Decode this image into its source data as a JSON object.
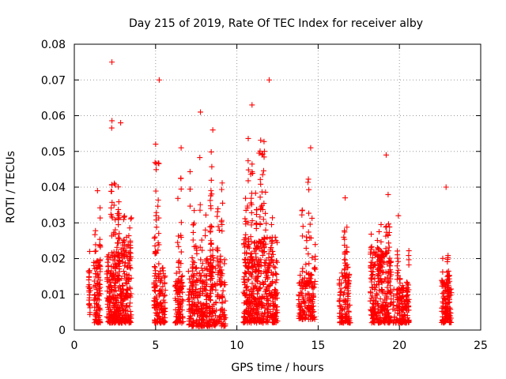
{
  "chart_data": {
    "type": "scatter",
    "title": "Day 215 of 2019, Rate Of TEC Index for receiver alby",
    "xlabel": "GPS time / hours",
    "ylabel": "ROTI / TECUs",
    "xlim": [
      0,
      25
    ],
    "ylim": [
      0,
      0.08
    ],
    "x_ticks": [
      0,
      5,
      10,
      15,
      20,
      25
    ],
    "x_tick_labels": [
      "0",
      "5",
      "10",
      "15",
      "20",
      "25"
    ],
    "y_ticks": [
      0,
      0.01,
      0.02,
      0.03,
      0.04,
      0.05,
      0.06,
      0.07,
      0.08
    ],
    "y_tick_labels": [
      "0",
      "0.01",
      "0.02",
      "0.03",
      "0.04",
      "0.05",
      "0.06",
      "0.07",
      "0.08"
    ],
    "grid": true,
    "marker": "plus",
    "color": "#ff0000",
    "seed": 215,
    "clusters": [
      {
        "x_start": 0.9,
        "x_end": 1.0,
        "base_min": 0.003,
        "base_max": 0.012,
        "count": 10,
        "peak": 0.022
      },
      {
        "x_start": 1.2,
        "x_end": 1.6,
        "base_min": 0.002,
        "base_max": 0.02,
        "count": 90,
        "peak": 0.039
      },
      {
        "x_start": 2.0,
        "x_end": 2.6,
        "base_min": 0.002,
        "base_max": 0.022,
        "count": 150,
        "peak": 0.075
      },
      {
        "x_start": 2.6,
        "x_end": 3.5,
        "base_min": 0.002,
        "base_max": 0.026,
        "count": 200,
        "peak": 0.058
      },
      {
        "x_start": 4.9,
        "x_end": 5.6,
        "base_min": 0.002,
        "base_max": 0.018,
        "count": 120,
        "peak": 0.07
      },
      {
        "x_start": 6.2,
        "x_end": 6.7,
        "base_min": 0.002,
        "base_max": 0.016,
        "count": 80,
        "peak": 0.051
      },
      {
        "x_start": 7.0,
        "x_end": 8.0,
        "base_min": 0.001,
        "base_max": 0.018,
        "count": 150,
        "peak": 0.061
      },
      {
        "x_start": 8.0,
        "x_end": 9.3,
        "base_min": 0.001,
        "base_max": 0.02,
        "count": 170,
        "peak": 0.056
      },
      {
        "x_start": 10.4,
        "x_end": 11.4,
        "base_min": 0.002,
        "base_max": 0.026,
        "count": 220,
        "peak": 0.063
      },
      {
        "x_start": 11.4,
        "x_end": 12.5,
        "base_min": 0.002,
        "base_max": 0.026,
        "count": 200,
        "peak": 0.07
      },
      {
        "x_start": 13.8,
        "x_end": 14.8,
        "base_min": 0.003,
        "base_max": 0.016,
        "count": 130,
        "peak": 0.051
      },
      {
        "x_start": 16.3,
        "x_end": 17.0,
        "base_min": 0.002,
        "base_max": 0.016,
        "count": 100,
        "peak": 0.037
      },
      {
        "x_start": 18.2,
        "x_end": 19.5,
        "base_min": 0.002,
        "base_max": 0.022,
        "count": 240,
        "peak": 0.049
      },
      {
        "x_start": 19.6,
        "x_end": 20.6,
        "base_min": 0.002,
        "base_max": 0.012,
        "count": 120,
        "peak": 0.032
      },
      {
        "x_start": 22.6,
        "x_end": 23.2,
        "base_min": 0.002,
        "base_max": 0.014,
        "count": 110,
        "peak": 0.04
      }
    ]
  }
}
